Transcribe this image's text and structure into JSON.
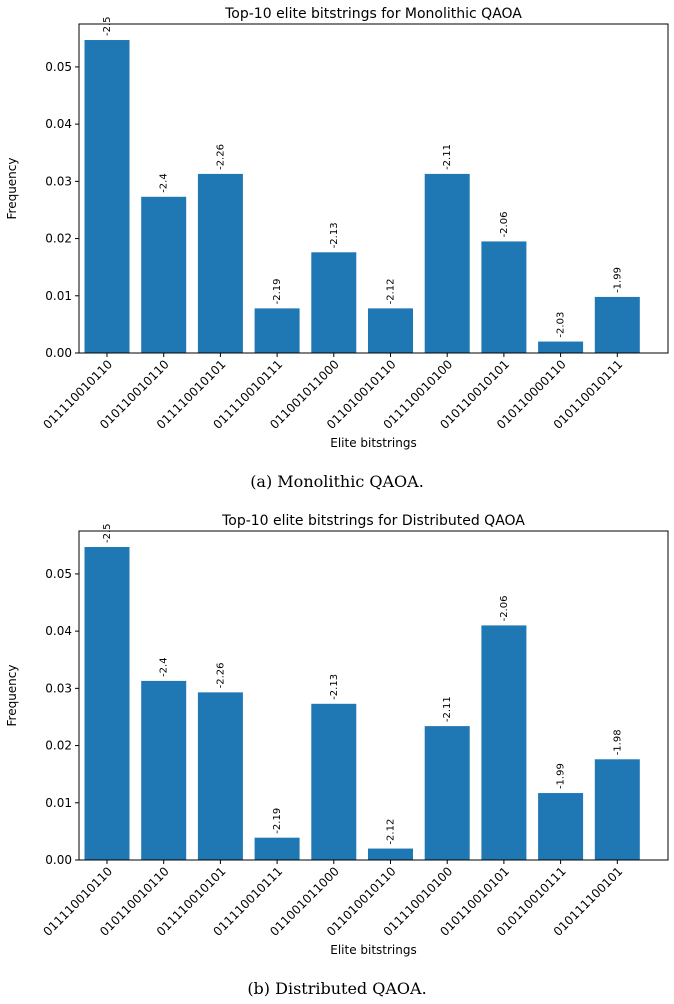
{
  "chart_data": [
    {
      "type": "bar",
      "title": "Top-10 elite bitstrings for Monolithic QAOA",
      "x_label": "Elite bitstrings",
      "y_label": "Frequency",
      "caption": "(a) Monolithic QAOA.",
      "categories": [
        "011110010110",
        "010110010110",
        "011110010101",
        "011110010111",
        "011001011000",
        "011010010110",
        "011110010100",
        "010110010101",
        "010110000110",
        "010110010111"
      ],
      "values": [
        0.0547,
        0.0273,
        0.0313,
        0.0078,
        0.0176,
        0.0078,
        0.0313,
        0.0195,
        0.002,
        0.0098
      ],
      "bar_labels": [
        -2.5,
        -2.4,
        -2.26,
        -2.19,
        -2.13,
        -2.12,
        -2.11,
        -2.06,
        -2.03,
        -1.99
      ],
      "color": "#1f77b4",
      "ylim": [
        0,
        0.0575
      ],
      "yticks": [
        {
          "value": 0,
          "label": "0.00"
        },
        0.01,
        0.02,
        0.03,
        0.04,
        0.05
      ]
    },
    {
      "type": "bar",
      "title": "Top-10 elite bitstrings for Distributed QAOA",
      "x_label": "Elite bitstrings",
      "y_label": "Frequency",
      "caption": "(b) Distributed QAOA.",
      "categories": [
        "011110010110",
        "010110010110",
        "011110010101",
        "011110010111",
        "011001011000",
        "011010010110",
        "011110010100",
        "010110010101",
        "010110010111",
        "010111100101"
      ],
      "values": [
        0.0547,
        0.0313,
        0.0293,
        0.0039,
        0.0273,
        0.002,
        0.0234,
        0.041,
        0.0117,
        0.0176
      ],
      "bar_labels": [
        -2.5,
        -2.4,
        -2.26,
        -2.19,
        -2.13,
        -2.12,
        -2.11,
        -2.06,
        -1.99,
        -1.98
      ],
      "color": "#1f77b4",
      "ylim": [
        0,
        0.0575
      ],
      "yticks": [
        {
          "value": 0,
          "label": "0.00"
        },
        0.01,
        0.02,
        0.03,
        0.04,
        0.05
      ]
    }
  ]
}
